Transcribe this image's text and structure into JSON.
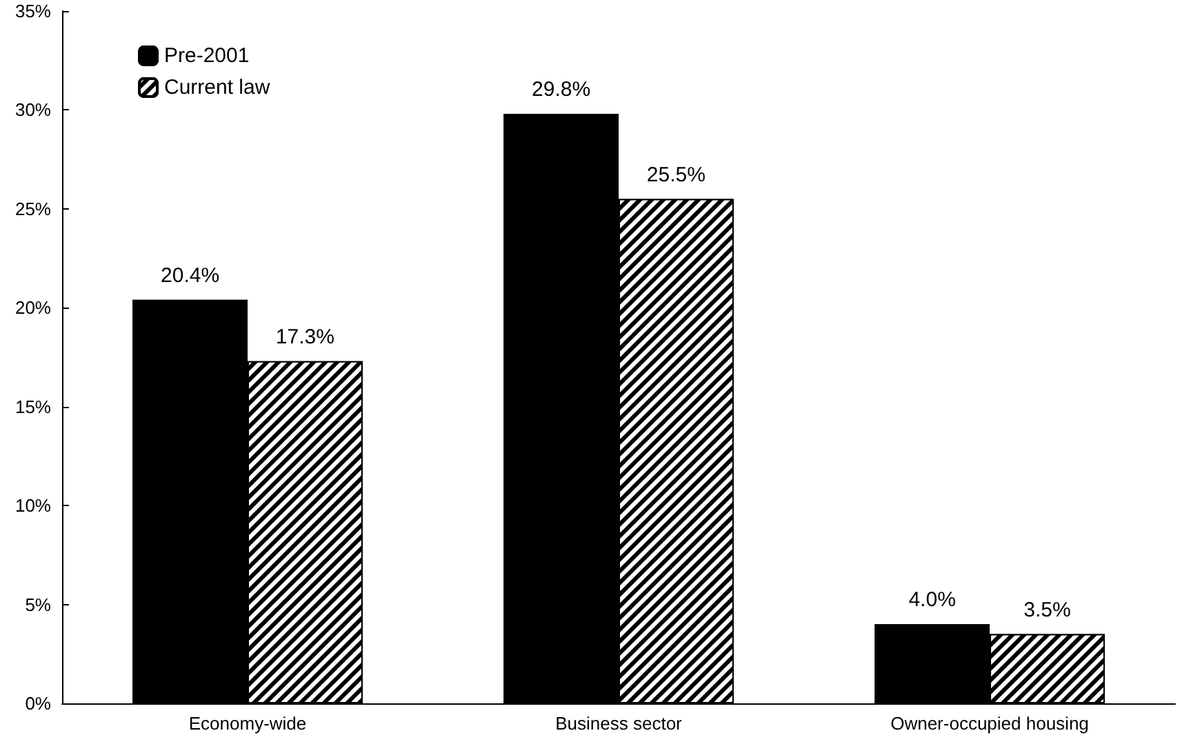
{
  "chart_data": {
    "type": "bar",
    "categories": [
      "Economy-wide",
      "Business sector",
      "Owner-occupied housing"
    ],
    "series": [
      {
        "name": "Pre-2001",
        "color": "#000000",
        "values": [
          20.4,
          29.8,
          4.0
        ],
        "value_labels": [
          "20.4%",
          "29.8%",
          "4.0%"
        ]
      },
      {
        "name": "Current law",
        "color": "#000000",
        "values": [
          17.3,
          25.5,
          3.5
        ],
        "value_labels": [
          "17.3%",
          "25.5%",
          "3.5%"
        ]
      }
    ],
    "ylim": [
      0,
      35
    ],
    "yticks": [
      {
        "value": 0,
        "label": "0%"
      },
      {
        "value": 5,
        "label": "5%"
      },
      {
        "value": 10,
        "label": "10%"
      },
      {
        "value": 15,
        "label": "15%"
      },
      {
        "value": 20,
        "label": "20%"
      },
      {
        "value": 25,
        "label": "25%"
      },
      {
        "value": 30,
        "label": "30%"
      },
      {
        "value": 35,
        "label": "35%"
      }
    ],
    "grid": false,
    "legend": "top left"
  }
}
